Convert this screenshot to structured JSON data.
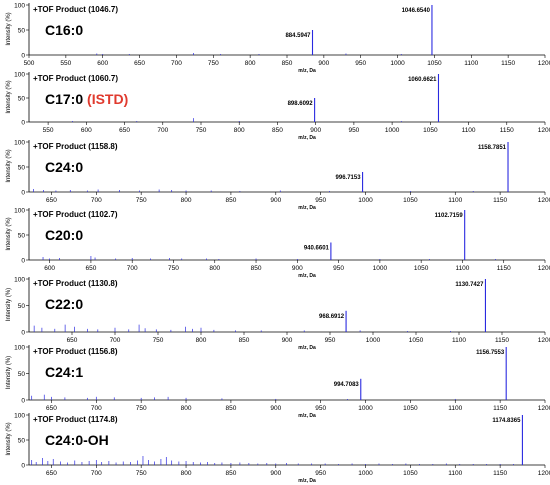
{
  "figure": {
    "colors": {
      "spectrum": "#2a2ae0",
      "axis": "#000000",
      "istd": "#e03a2e"
    }
  },
  "chart_data": [
    {
      "type": "bar",
      "title": "+TOF Product (1046.7)",
      "compound": "C16:0",
      "compound_tag": "",
      "xlabel": "m/z, Da",
      "ylabel": "Intensity (%)",
      "xlim": [
        500,
        1200
      ],
      "xticks": [
        500,
        550,
        600,
        650,
        700,
        750,
        800,
        850,
        900,
        950,
        1000,
        1050,
        1100,
        1150,
        1200
      ],
      "ylim": [
        0,
        100
      ],
      "yticks": [
        0,
        50,
        100
      ],
      "peaks": [
        {
          "x": 884.5947,
          "y": 50,
          "label": "884.5947"
        },
        {
          "x": 1046.654,
          "y": 100,
          "label": "1046.6540"
        }
      ],
      "noise": [
        {
          "x": 592,
          "y": 3
        },
        {
          "x": 600,
          "y": 2
        },
        {
          "x": 636,
          "y": 2
        },
        {
          "x": 723,
          "y": 4
        },
        {
          "x": 760,
          "y": 2
        },
        {
          "x": 812,
          "y": 2
        },
        {
          "x": 930,
          "y": 3
        },
        {
          "x": 1005,
          "y": 2
        }
      ]
    },
    {
      "type": "bar",
      "title": "+TOF Product (1060.7)",
      "compound": "C17:0",
      "compound_tag": "(ISTD)",
      "xlabel": "m/z, Da",
      "ylabel": "Intensity (%)",
      "xlim": [
        525,
        1200
      ],
      "xticks": [
        550,
        600,
        650,
        700,
        750,
        800,
        850,
        900,
        950,
        1000,
        1050,
        1100,
        1150,
        1200
      ],
      "ylim": [
        0,
        100
      ],
      "yticks": [
        0,
        50,
        100
      ],
      "peaks": [
        {
          "x": 898.6092,
          "y": 50,
          "label": "898.6092"
        },
        {
          "x": 1060.6621,
          "y": 100,
          "label": "1060.6621"
        }
      ],
      "noise": [
        {
          "x": 740,
          "y": 8
        },
        {
          "x": 582,
          "y": 2
        },
        {
          "x": 666,
          "y": 2
        },
        {
          "x": 800,
          "y": 2
        },
        {
          "x": 1012,
          "y": 2
        }
      ]
    },
    {
      "type": "bar",
      "title": "+TOF Product (1158.8)",
      "compound": "C24:0",
      "compound_tag": "",
      "xlabel": "m/z, Da",
      "ylabel": "Intensity (%)",
      "xlim": [
        625,
        1200
      ],
      "xticks": [
        650,
        700,
        750,
        800,
        850,
        900,
        950,
        1000,
        1050,
        1100,
        1150,
        1200
      ],
      "ylim": [
        0,
        100
      ],
      "yticks": [
        0,
        50,
        100
      ],
      "peaks": [
        {
          "x": 996.7153,
          "y": 40,
          "label": "996.7153"
        },
        {
          "x": 1158.7851,
          "y": 100,
          "label": "1158.7851"
        }
      ],
      "noise": [
        {
          "x": 630,
          "y": 6
        },
        {
          "x": 641,
          "y": 4
        },
        {
          "x": 655,
          "y": 3
        },
        {
          "x": 671,
          "y": 4
        },
        {
          "x": 690,
          "y": 3
        },
        {
          "x": 702,
          "y": 5
        },
        {
          "x": 726,
          "y": 4
        },
        {
          "x": 748,
          "y": 3
        },
        {
          "x": 770,
          "y": 5
        },
        {
          "x": 784,
          "y": 4
        },
        {
          "x": 800,
          "y": 3
        },
        {
          "x": 828,
          "y": 3
        },
        {
          "x": 860,
          "y": 2
        },
        {
          "x": 905,
          "y": 3
        },
        {
          "x": 960,
          "y": 2
        },
        {
          "x": 1050,
          "y": 2
        },
        {
          "x": 1120,
          "y": 2
        }
      ]
    },
    {
      "type": "bar",
      "title": "+TOF Product (1102.7)",
      "compound": "C20:0",
      "compound_tag": "",
      "xlabel": "m/z, Da",
      "ylabel": "Intensity (%)",
      "xlim": [
        575,
        1200
      ],
      "xticks": [
        600,
        650,
        700,
        750,
        800,
        850,
        900,
        950,
        1000,
        1050,
        1100,
        1150,
        1200
      ],
      "ylim": [
        0,
        100
      ],
      "yticks": [
        0,
        50,
        100
      ],
      "peaks": [
        {
          "x": 940.6601,
          "y": 35,
          "label": "940.6601"
        },
        {
          "x": 1102.7159,
          "y": 100,
          "label": "1102.7159"
        }
      ],
      "noise": [
        {
          "x": 592,
          "y": 6
        },
        {
          "x": 600,
          "y": 3
        },
        {
          "x": 612,
          "y": 4
        },
        {
          "x": 650,
          "y": 8
        },
        {
          "x": 655,
          "y": 5
        },
        {
          "x": 680,
          "y": 3
        },
        {
          "x": 700,
          "y": 4
        },
        {
          "x": 722,
          "y": 3
        },
        {
          "x": 745,
          "y": 4
        },
        {
          "x": 760,
          "y": 3
        },
        {
          "x": 790,
          "y": 3
        },
        {
          "x": 805,
          "y": 2
        },
        {
          "x": 850,
          "y": 3
        },
        {
          "x": 900,
          "y": 2
        },
        {
          "x": 1000,
          "y": 2
        },
        {
          "x": 1060,
          "y": 2
        },
        {
          "x": 1140,
          "y": 2
        }
      ]
    },
    {
      "type": "bar",
      "title": "+TOF Product (1130.8)",
      "compound": "C22:0",
      "compound_tag": "",
      "xlabel": "m/z, Da",
      "ylabel": "Intensity (%)",
      "xlim": [
        600,
        1200
      ],
      "xticks": [
        650,
        700,
        750,
        800,
        850,
        900,
        950,
        1000,
        1050,
        1100,
        1150,
        1200
      ],
      "ylim": [
        0,
        100
      ],
      "yticks": [
        0,
        50,
        100
      ],
      "peaks": [
        {
          "x": 968.6912,
          "y": 40,
          "label": "968.6912"
        },
        {
          "x": 1130.7427,
          "y": 100,
          "label": "1130.7427"
        }
      ],
      "noise": [
        {
          "x": 606,
          "y": 12
        },
        {
          "x": 615,
          "y": 8
        },
        {
          "x": 630,
          "y": 6
        },
        {
          "x": 642,
          "y": 14
        },
        {
          "x": 653,
          "y": 10
        },
        {
          "x": 668,
          "y": 6
        },
        {
          "x": 680,
          "y": 5
        },
        {
          "x": 700,
          "y": 8
        },
        {
          "x": 716,
          "y": 5
        },
        {
          "x": 728,
          "y": 14
        },
        {
          "x": 735,
          "y": 7
        },
        {
          "x": 748,
          "y": 5
        },
        {
          "x": 765,
          "y": 4
        },
        {
          "x": 782,
          "y": 10
        },
        {
          "x": 790,
          "y": 6
        },
        {
          "x": 800,
          "y": 8
        },
        {
          "x": 815,
          "y": 4
        },
        {
          "x": 840,
          "y": 3
        },
        {
          "x": 870,
          "y": 3
        },
        {
          "x": 920,
          "y": 3
        },
        {
          "x": 985,
          "y": 3
        },
        {
          "x": 1040,
          "y": 2
        },
        {
          "x": 1090,
          "y": 2
        }
      ]
    },
    {
      "type": "bar",
      "title": "+TOF Product (1156.8)",
      "compound": "C24:1",
      "compound_tag": "",
      "xlabel": "m/z, Da",
      "ylabel": "Intensity (%)",
      "xlim": [
        625,
        1200
      ],
      "xticks": [
        650,
        700,
        750,
        800,
        850,
        900,
        950,
        1000,
        1050,
        1100,
        1150,
        1200
      ],
      "ylim": [
        0,
        100
      ],
      "yticks": [
        0,
        50,
        100
      ],
      "peaks": [
        {
          "x": 994.7083,
          "y": 40,
          "label": "994.7083"
        },
        {
          "x": 1156.7553,
          "y": 100,
          "label": "1156.7553"
        }
      ],
      "noise": [
        {
          "x": 628,
          "y": 8
        },
        {
          "x": 642,
          "y": 10
        },
        {
          "x": 650,
          "y": 6
        },
        {
          "x": 665,
          "y": 5
        },
        {
          "x": 690,
          "y": 4
        },
        {
          "x": 700,
          "y": 6
        },
        {
          "x": 720,
          "y": 5
        },
        {
          "x": 750,
          "y": 4
        },
        {
          "x": 765,
          "y": 5
        },
        {
          "x": 780,
          "y": 6
        },
        {
          "x": 800,
          "y": 4
        },
        {
          "x": 840,
          "y": 3
        },
        {
          "x": 900,
          "y": 2
        },
        {
          "x": 980,
          "y": 2
        },
        {
          "x": 1100,
          "y": 2
        }
      ]
    },
    {
      "type": "bar",
      "title": "+TOF Product (1174.8)",
      "compound": "C24:0-OH",
      "compound_tag": "",
      "xlabel": "m/z, Da",
      "ylabel": "Intensity (%)",
      "xlim": [
        625,
        1200
      ],
      "xticks": [
        650,
        700,
        750,
        800,
        850,
        900,
        950,
        1000,
        1050,
        1100,
        1150,
        1200
      ],
      "ylim": [
        0,
        100
      ],
      "yticks": [
        0,
        50,
        100
      ],
      "peaks": [
        {
          "x": 1174.8365,
          "y": 100,
          "label": "1174.8365"
        }
      ],
      "noise": [
        {
          "x": 628,
          "y": 10
        },
        {
          "x": 633,
          "y": 6
        },
        {
          "x": 640,
          "y": 14
        },
        {
          "x": 646,
          "y": 8
        },
        {
          "x": 652,
          "y": 12
        },
        {
          "x": 660,
          "y": 7
        },
        {
          "x": 668,
          "y": 5
        },
        {
          "x": 676,
          "y": 9
        },
        {
          "x": 684,
          "y": 6
        },
        {
          "x": 692,
          "y": 8
        },
        {
          "x": 700,
          "y": 10
        },
        {
          "x": 706,
          "y": 6
        },
        {
          "x": 714,
          "y": 8
        },
        {
          "x": 722,
          "y": 5
        },
        {
          "x": 730,
          "y": 7
        },
        {
          "x": 738,
          "y": 6
        },
        {
          "x": 746,
          "y": 9
        },
        {
          "x": 752,
          "y": 18
        },
        {
          "x": 758,
          "y": 10
        },
        {
          "x": 765,
          "y": 7
        },
        {
          "x": 772,
          "y": 12
        },
        {
          "x": 778,
          "y": 16
        },
        {
          "x": 784,
          "y": 9
        },
        {
          "x": 792,
          "y": 7
        },
        {
          "x": 800,
          "y": 8
        },
        {
          "x": 808,
          "y": 6
        },
        {
          "x": 816,
          "y": 5
        },
        {
          "x": 824,
          "y": 6
        },
        {
          "x": 832,
          "y": 4
        },
        {
          "x": 840,
          "y": 5
        },
        {
          "x": 850,
          "y": 4
        },
        {
          "x": 860,
          "y": 5
        },
        {
          "x": 870,
          "y": 4
        },
        {
          "x": 880,
          "y": 3
        },
        {
          "x": 890,
          "y": 4
        },
        {
          "x": 900,
          "y": 3
        },
        {
          "x": 912,
          "y": 4
        },
        {
          "x": 925,
          "y": 3
        },
        {
          "x": 940,
          "y": 3
        },
        {
          "x": 955,
          "y": 3
        },
        {
          "x": 970,
          "y": 2
        },
        {
          "x": 985,
          "y": 3
        },
        {
          "x": 1000,
          "y": 2
        },
        {
          "x": 1015,
          "y": 3
        },
        {
          "x": 1030,
          "y": 2
        },
        {
          "x": 1045,
          "y": 3
        },
        {
          "x": 1060,
          "y": 2
        },
        {
          "x": 1075,
          "y": 2
        },
        {
          "x": 1090,
          "y": 3
        },
        {
          "x": 1105,
          "y": 2
        },
        {
          "x": 1120,
          "y": 2
        },
        {
          "x": 1135,
          "y": 2
        },
        {
          "x": 1150,
          "y": 2
        },
        {
          "x": 1165,
          "y": 2
        }
      ]
    }
  ]
}
